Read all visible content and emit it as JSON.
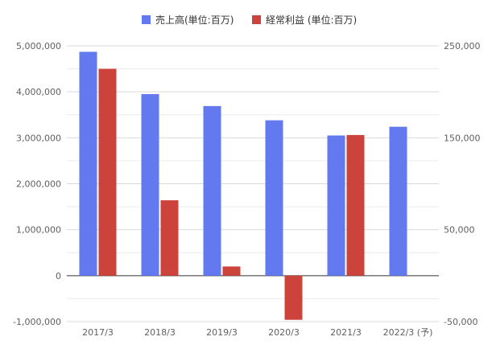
{
  "chart_data": {
    "type": "bar",
    "categories": [
      "2017/3",
      "2018/3",
      "2019/3",
      "2020/3",
      "2021/3",
      "2022/3 (予)"
    ],
    "series": [
      {
        "name": "売上高(単位:百万)",
        "axis": "left",
        "color": "#6279ef",
        "values": [
          4870000,
          3950000,
          3690000,
          3380000,
          3050000,
          3240000
        ]
      },
      {
        "name": "経常利益 (単位:百万)",
        "axis": "right",
        "color": "#cc433b",
        "values": [
          225000,
          82000,
          10000,
          -48000,
          153000,
          null
        ]
      }
    ],
    "y_left": {
      "range": [
        -1000000,
        5000000
      ],
      "ticks": [
        5000000,
        4000000,
        3000000,
        2000000,
        1000000,
        0,
        -1000000
      ],
      "tick_labels": [
        "5,000,000",
        "4,000,000",
        "3,000,000",
        "2,000,000",
        "1,000,000",
        "0",
        "-1,000,000"
      ]
    },
    "y_right": {
      "range": [
        -50000,
        250000
      ],
      "ticks": [
        250000,
        150000,
        50000,
        -50000
      ],
      "tick_labels": [
        "250,000",
        "150,000",
        "50,000",
        "-50,000"
      ]
    },
    "legend_position": "top-center",
    "grid": true,
    "title": "",
    "xlabel": "",
    "ylabel": ""
  }
}
